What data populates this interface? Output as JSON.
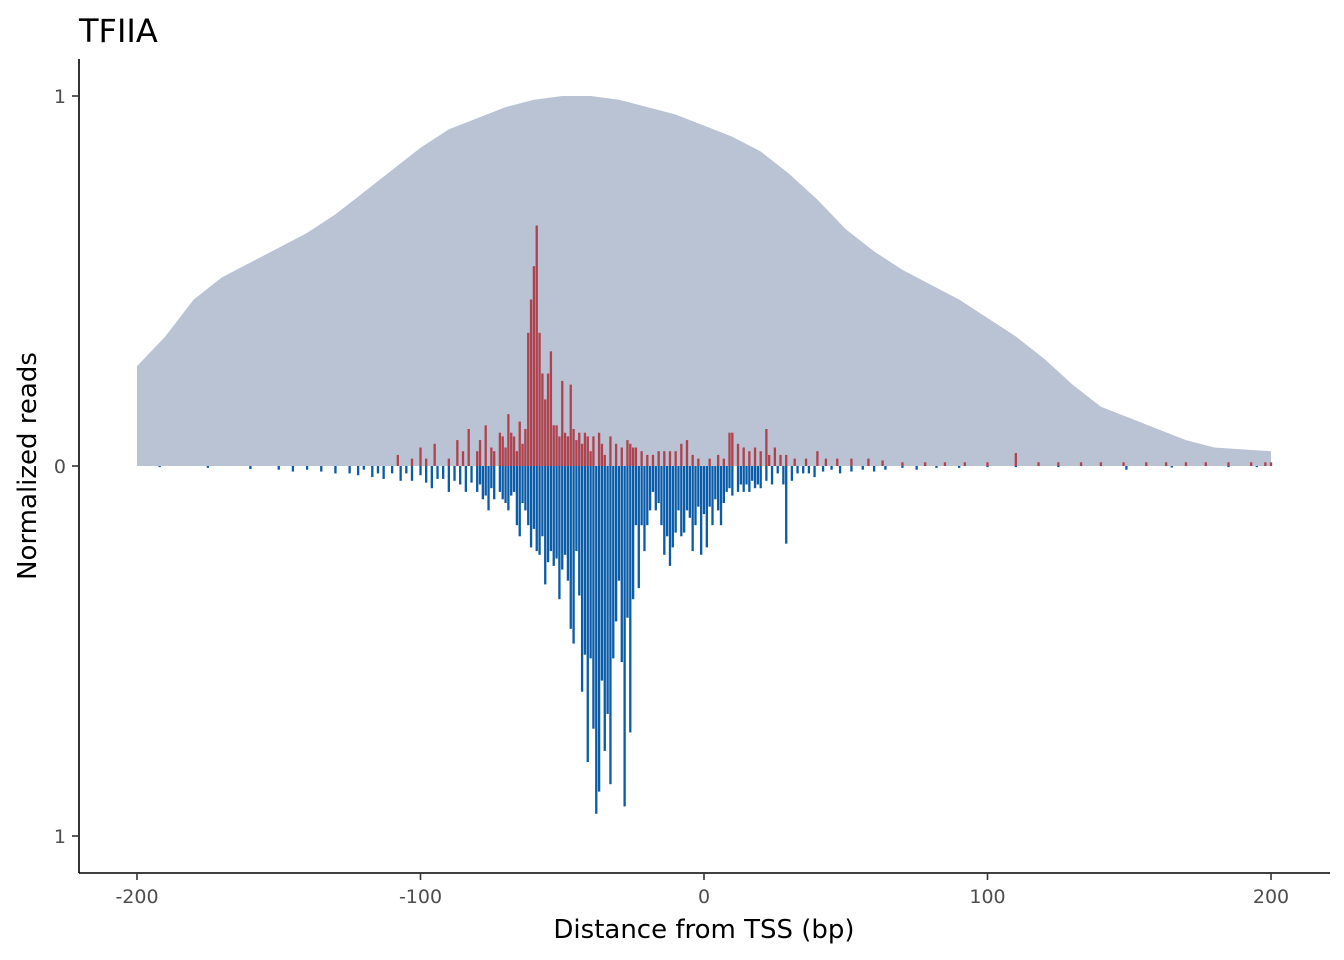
{
  "chart_data": {
    "type": "bar",
    "title": "TFIIA",
    "xlabel": "Distance from TSS (bp)",
    "ylabel": "Normalized reads",
    "xlim": [
      -200,
      200
    ],
    "ylim": [
      -1,
      1
    ],
    "x_ticks": [
      -200,
      -100,
      0,
      100,
      200
    ],
    "x_tick_labels": [
      "-200",
      "-100",
      "0",
      "100",
      "200"
    ],
    "y_ticks": [
      1,
      0,
      -1
    ],
    "y_tick_labels": [
      "1",
      "0",
      "1"
    ],
    "grid": false,
    "legend": "none",
    "colors": {
      "background_profile": "#b9c3d4",
      "positive_strand": "#b0424e",
      "negative_strand": "#0a5ca8",
      "axis": "#000000"
    },
    "series": [
      {
        "kind": "area",
        "points": [
          [
            -200,
            0.27
          ],
          [
            -195,
            0.31
          ],
          [
            -190,
            0.35
          ],
          [
            -185,
            0.4
          ],
          [
            -180,
            0.45
          ],
          [
            -175,
            0.48
          ],
          [
            -170,
            0.51
          ],
          [
            -160,
            0.55
          ],
          [
            -150,
            0.59
          ],
          [
            -140,
            0.63
          ],
          [
            -130,
            0.68
          ],
          [
            -120,
            0.74
          ],
          [
            -110,
            0.8
          ],
          [
            -100,
            0.86
          ],
          [
            -90,
            0.91
          ],
          [
            -80,
            0.94
          ],
          [
            -70,
            0.97
          ],
          [
            -60,
            0.99
          ],
          [
            -50,
            1.0
          ],
          [
            -40,
            1.0
          ],
          [
            -30,
            0.99
          ],
          [
            -20,
            0.97
          ],
          [
            -10,
            0.95
          ],
          [
            0,
            0.92
          ],
          [
            10,
            0.89
          ],
          [
            20,
            0.85
          ],
          [
            30,
            0.79
          ],
          [
            40,
            0.72
          ],
          [
            50,
            0.64
          ],
          [
            60,
            0.58
          ],
          [
            70,
            0.53
          ],
          [
            80,
            0.49
          ],
          [
            90,
            0.45
          ],
          [
            100,
            0.4
          ],
          [
            110,
            0.35
          ],
          [
            120,
            0.29
          ],
          [
            130,
            0.22
          ],
          [
            140,
            0.16
          ],
          [
            150,
            0.13
          ],
          [
            160,
            0.1
          ],
          [
            170,
            0.07
          ],
          [
            180,
            0.05
          ],
          [
            190,
            0.045
          ],
          [
            200,
            0.04
          ]
        ]
      },
      {
        "kind": "bar-up",
        "points": [
          [
            -108,
            0.03
          ],
          [
            -103,
            0.02
          ],
          [
            -100,
            0.05
          ],
          [
            -98,
            0.02
          ],
          [
            -95,
            0.06
          ],
          [
            -90,
            0.02
          ],
          [
            -87,
            0.07
          ],
          [
            -85,
            0.04
          ],
          [
            -83,
            0.1
          ],
          [
            -80,
            0.04
          ],
          [
            -79,
            0.07
          ],
          [
            -77,
            0.11
          ],
          [
            -75,
            0.05
          ],
          [
            -74,
            0.04
          ],
          [
            -72,
            0.09
          ],
          [
            -71,
            0.08
          ],
          [
            -70,
            0.05
          ],
          [
            -69,
            0.14
          ],
          [
            -68,
            0.09
          ],
          [
            -67,
            0.08
          ],
          [
            -66,
            0.04
          ],
          [
            -65,
            0.12
          ],
          [
            -64,
            0.06
          ],
          [
            -63,
            0.1
          ],
          [
            -62,
            0.36
          ],
          [
            -61,
            0.45
          ],
          [
            -60,
            0.54
          ],
          [
            -59,
            0.65
          ],
          [
            -58,
            0.36
          ],
          [
            -57,
            0.25
          ],
          [
            -56,
            0.18
          ],
          [
            -55,
            0.25
          ],
          [
            -54,
            0.31
          ],
          [
            -53,
            0.11
          ],
          [
            -52,
            0.11
          ],
          [
            -51,
            0.08
          ],
          [
            -50,
            0.23
          ],
          [
            -49,
            0.09
          ],
          [
            -48,
            0.08
          ],
          [
            -47,
            0.22
          ],
          [
            -46,
            0.1
          ],
          [
            -45,
            0.07
          ],
          [
            -44,
            0.09
          ],
          [
            -43,
            0.06
          ],
          [
            -42,
            0.09
          ],
          [
            -41,
            0.08
          ],
          [
            -40,
            0.04
          ],
          [
            -39,
            0.08
          ],
          [
            -37,
            0.09
          ],
          [
            -36,
            0.06
          ],
          [
            -35,
            0.03
          ],
          [
            -33,
            0.08
          ],
          [
            -31,
            0.06
          ],
          [
            -29,
            0.05
          ],
          [
            -27,
            0.07
          ],
          [
            -26,
            0.06
          ],
          [
            -25,
            0.05
          ],
          [
            -24,
            0.05
          ],
          [
            -22,
            0.04
          ],
          [
            -20,
            0.03
          ],
          [
            -18,
            0.03
          ],
          [
            -16,
            0.04
          ],
          [
            -14,
            0.04
          ],
          [
            -12,
            0.04
          ],
          [
            -10,
            0.04
          ],
          [
            -8,
            0.06
          ],
          [
            -6,
            0.07
          ],
          [
            -4,
            0.03
          ],
          [
            -2,
            0.02
          ],
          [
            2,
            0.02
          ],
          [
            5,
            0.03
          ],
          [
            7,
            0.02
          ],
          [
            9,
            0.09
          ],
          [
            10,
            0.09
          ],
          [
            12,
            0.06
          ],
          [
            14,
            0.05
          ],
          [
            16,
            0.04
          ],
          [
            18,
            0.05
          ],
          [
            20,
            0.04
          ],
          [
            22,
            0.1
          ],
          [
            23,
            0.03
          ],
          [
            25,
            0.05
          ],
          [
            27,
            0.03
          ],
          [
            29,
            0.03
          ],
          [
            32,
            0.02
          ],
          [
            36,
            0.02
          ],
          [
            40,
            0.04
          ],
          [
            43,
            0.02
          ],
          [
            47,
            0.02
          ],
          [
            52,
            0.02
          ],
          [
            58,
            0.02
          ],
          [
            63,
            0.015
          ],
          [
            70,
            0.01
          ],
          [
            78,
            0.01
          ],
          [
            85,
            0.01
          ],
          [
            92,
            0.01
          ],
          [
            100,
            0.01
          ],
          [
            110,
            0.035
          ],
          [
            118,
            0.01
          ],
          [
            125,
            0.01
          ],
          [
            133,
            0.01
          ],
          [
            140,
            0.01
          ],
          [
            148,
            0.01
          ],
          [
            156,
            0.01
          ],
          [
            163,
            0.01
          ],
          [
            170,
            0.01
          ],
          [
            177,
            0.01
          ],
          [
            185,
            0.01
          ],
          [
            193,
            0.01
          ],
          [
            198,
            0.01
          ],
          [
            200,
            0.01
          ]
        ]
      },
      {
        "kind": "bar-down",
        "points": [
          [
            -192,
            0.003
          ],
          [
            -175,
            0.005
          ],
          [
            -160,
            0.008
          ],
          [
            -150,
            0.01
          ],
          [
            -145,
            0.015
          ],
          [
            -140,
            0.01
          ],
          [
            -135,
            0.015
          ],
          [
            -130,
            0.02
          ],
          [
            -125,
            0.02
          ],
          [
            -122,
            0.025
          ],
          [
            -120,
            0.01
          ],
          [
            -117,
            0.03
          ],
          [
            -115,
            0.02
          ],
          [
            -113,
            0.035
          ],
          [
            -110,
            0.02
          ],
          [
            -107,
            0.04
          ],
          [
            -105,
            0.02
          ],
          [
            -103,
            0.04
          ],
          [
            -100,
            0.025
          ],
          [
            -98,
            0.045
          ],
          [
            -96,
            0.06
          ],
          [
            -94,
            0.035
          ],
          [
            -92,
            0.035
          ],
          [
            -90,
            0.07
          ],
          [
            -88,
            0.04
          ],
          [
            -86,
            0.05
          ],
          [
            -84,
            0.07
          ],
          [
            -82,
            0.045
          ],
          [
            -80,
            0.07
          ],
          [
            -79,
            0.05
          ],
          [
            -78,
            0.09
          ],
          [
            -77,
            0.08
          ],
          [
            -76,
            0.12
          ],
          [
            -75,
            0.06
          ],
          [
            -74,
            0.09
          ],
          [
            -72,
            0.07
          ],
          [
            -71,
            0.09
          ],
          [
            -70,
            0.1
          ],
          [
            -69,
            0.12
          ],
          [
            -68,
            0.08
          ],
          [
            -67,
            0.07
          ],
          [
            -66,
            0.16
          ],
          [
            -65,
            0.19
          ],
          [
            -64,
            0.1
          ],
          [
            -63,
            0.12
          ],
          [
            -62,
            0.16
          ],
          [
            -61,
            0.22
          ],
          [
            -60,
            0.17
          ],
          [
            -59,
            0.23
          ],
          [
            -58,
            0.24
          ],
          [
            -57,
            0.19
          ],
          [
            -56,
            0.32
          ],
          [
            -55,
            0.26
          ],
          [
            -54,
            0.23
          ],
          [
            -53,
            0.27
          ],
          [
            -52,
            0.25
          ],
          [
            -51,
            0.36
          ],
          [
            -50,
            0.28
          ],
          [
            -49,
            0.24
          ],
          [
            -48,
            0.31
          ],
          [
            -47,
            0.44
          ],
          [
            -46,
            0.48
          ],
          [
            -45,
            0.23
          ],
          [
            -44,
            0.35
          ],
          [
            -43,
            0.61
          ],
          [
            -42,
            0.51
          ],
          [
            -41,
            0.8
          ],
          [
            -40,
            0.52
          ],
          [
            -39,
            0.71
          ],
          [
            -38,
            0.94
          ],
          [
            -37,
            0.88
          ],
          [
            -36,
            0.58
          ],
          [
            -35,
            0.77
          ],
          [
            -34,
            0.67
          ],
          [
            -33,
            0.86
          ],
          [
            -32,
            0.52
          ],
          [
            -31,
            0.42
          ],
          [
            -30,
            0.31
          ],
          [
            -29,
            0.53
          ],
          [
            -28,
            0.92
          ],
          [
            -27,
            0.41
          ],
          [
            -26,
            0.72
          ],
          [
            -25,
            0.36
          ],
          [
            -24,
            0.16
          ],
          [
            -23,
            0.33
          ],
          [
            -22,
            0.16
          ],
          [
            -21,
            0.23
          ],
          [
            -20,
            0.16
          ],
          [
            -19,
            0.12
          ],
          [
            -18,
            0.07
          ],
          [
            -17,
            0.12
          ],
          [
            -16,
            0.1
          ],
          [
            -15,
            0.16
          ],
          [
            -14,
            0.24
          ],
          [
            -13,
            0.19
          ],
          [
            -12,
            0.27
          ],
          [
            -11,
            0.22
          ],
          [
            -10,
            0.18
          ],
          [
            -9,
            0.12
          ],
          [
            -8,
            0.19
          ],
          [
            -7,
            0.18
          ],
          [
            -6,
            0.12
          ],
          [
            -5,
            0.14
          ],
          [
            -4,
            0.23
          ],
          [
            -3,
            0.16
          ],
          [
            -2,
            0.11
          ],
          [
            -1,
            0.24
          ],
          [
            0,
            0.13
          ],
          [
            1,
            0.22
          ],
          [
            2,
            0.11
          ],
          [
            3,
            0.16
          ],
          [
            4,
            0.09
          ],
          [
            5,
            0.12
          ],
          [
            6,
            0.16
          ],
          [
            7,
            0.1
          ],
          [
            8,
            0.07
          ],
          [
            9,
            0.06
          ],
          [
            10,
            0.08
          ],
          [
            12,
            0.07
          ],
          [
            13,
            0.05
          ],
          [
            14,
            0.07
          ],
          [
            15,
            0.05
          ],
          [
            16,
            0.07
          ],
          [
            17,
            0.04
          ],
          [
            18,
            0.06
          ],
          [
            19,
            0.05
          ],
          [
            20,
            0.06
          ],
          [
            22,
            0.04
          ],
          [
            24,
            0.05
          ],
          [
            26,
            0.02
          ],
          [
            28,
            0.05
          ],
          [
            29,
            0.21
          ],
          [
            31,
            0.04
          ],
          [
            33,
            0.02
          ],
          [
            35,
            0.02
          ],
          [
            37,
            0.02
          ],
          [
            39,
            0.03
          ],
          [
            42,
            0.015
          ],
          [
            45,
            0.01
          ],
          [
            48,
            0.02
          ],
          [
            52,
            0.015
          ],
          [
            56,
            0.01
          ],
          [
            60,
            0.015
          ],
          [
            64,
            0.01
          ],
          [
            70,
            0.005
          ],
          [
            75,
            0.01
          ],
          [
            82,
            0.005
          ],
          [
            90,
            0.005
          ],
          [
            100,
            0.003
          ],
          [
            110,
            0.003
          ],
          [
            125,
            0.003
          ],
          [
            149,
            0.01
          ],
          [
            165,
            0.004
          ],
          [
            185,
            0.003
          ],
          [
            195,
            0.003
          ]
        ]
      }
    ]
  }
}
